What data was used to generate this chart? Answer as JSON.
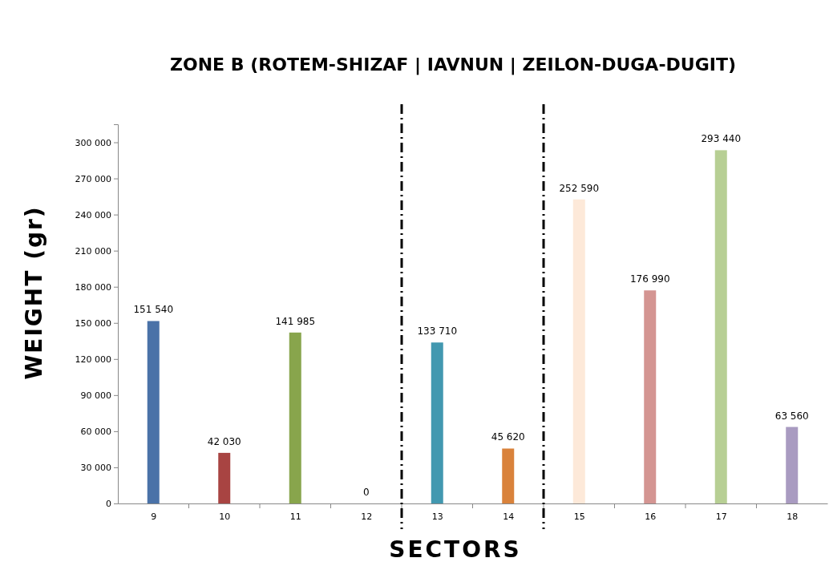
{
  "chart_data": {
    "type": "bar",
    "title": "ZONE B (ROTEM-SHIZAF | IAVNUN | ZEILON-DUGA-DUGIT)",
    "xlabel": "SECTORS",
    "ylabel": "WEIGHT (gr)",
    "x": [
      9,
      10,
      11,
      12,
      13,
      14,
      15,
      16,
      17,
      18
    ],
    "xlim": [
      8.5,
      18.5
    ],
    "xticks": [
      9,
      10,
      11,
      12,
      13,
      14,
      15,
      16,
      17,
      18
    ],
    "values": [
      151540,
      42030,
      141985,
      0,
      133710,
      45620,
      252590,
      176990,
      293440,
      63560
    ],
    "colors": [
      "#4a72a8",
      "#a84442",
      "#88a54c",
      "#88a54c",
      "#4298b0",
      "#d9823b",
      "#fde9d9",
      "#d49592",
      "#b7cf94",
      "#a99bc1"
    ],
    "value_labels": [
      "151 540",
      "42 030",
      "141 985",
      "0",
      "133 710",
      "45 620",
      "252 590",
      "176 990",
      "293 440",
      "63 560"
    ],
    "ylim": [
      0,
      315000
    ],
    "yticks": [
      {
        "value": 0,
        "label": "0"
      },
      {
        "value": 30000,
        "label": "30 000"
      },
      {
        "value": 60000,
        "label": "60 000"
      },
      {
        "value": 90000,
        "label": "90 000"
      },
      {
        "value": 120000,
        "label": "120 000"
      },
      {
        "value": 150000,
        "label": "150 000"
      },
      {
        "value": 180000,
        "label": "180 000"
      },
      {
        "value": 210000,
        "label": "210 000"
      },
      {
        "value": 240000,
        "label": "240 000"
      },
      {
        "value": 270000,
        "label": "270 000"
      },
      {
        "value": 300000,
        "label": "300 000"
      }
    ],
    "ref_lines": [
      {
        "axis": "x",
        "value": 12.5,
        "color": "#000000"
      },
      {
        "axis": "x",
        "value": 14.5,
        "color": "#000000"
      }
    ],
    "grid": false
  }
}
